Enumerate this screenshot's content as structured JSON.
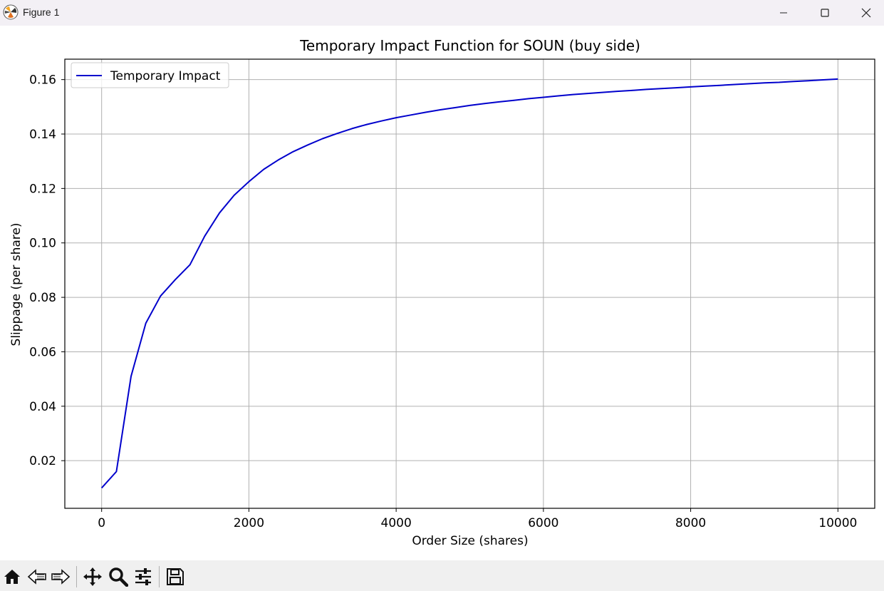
{
  "window": {
    "title": "Figure 1",
    "controls": [
      "minimize",
      "maximize",
      "close"
    ]
  },
  "toolbar": {
    "tools": [
      "home-icon",
      "back-icon",
      "forward-icon",
      "pan-icon",
      "zoom-icon",
      "configure-subplots-icon",
      "save-icon"
    ]
  },
  "chart_data": {
    "type": "line",
    "title": "Temporary Impact Function for SOUN (buy side)",
    "xlabel": "Order Size (shares)",
    "ylabel": "Slippage (per share)",
    "xlim": [
      -500,
      10500
    ],
    "ylim": [
      0.0025,
      0.1675
    ],
    "xticks": [
      0,
      2000,
      4000,
      6000,
      8000,
      10000
    ],
    "xtick_labels": [
      "0",
      "2000",
      "4000",
      "6000",
      "8000",
      "10000"
    ],
    "yticks": [
      0.02,
      0.04,
      0.06,
      0.08,
      0.1,
      0.12,
      0.14,
      0.16
    ],
    "ytick_labels": [
      "0.02",
      "0.04",
      "0.06",
      "0.08",
      "0.10",
      "0.12",
      "0.14",
      "0.16"
    ],
    "grid": true,
    "legend_position": "upper-left",
    "series": [
      {
        "name": "Temporary Impact",
        "color": "#0000cc",
        "x": [
          0,
          200,
          400,
          600,
          800,
          1000,
          1200,
          1400,
          1600,
          1800,
          2000,
          2200,
          2400,
          2600,
          2800,
          3000,
          3200,
          3400,
          3600,
          3800,
          4000,
          4200,
          4400,
          4600,
          4800,
          5000,
          5200,
          5400,
          5600,
          5800,
          6000,
          6200,
          6400,
          6600,
          6800,
          7000,
          7200,
          7400,
          7600,
          7800,
          8000,
          8200,
          8400,
          8600,
          8800,
          9000,
          9200,
          9400,
          9600,
          9800,
          10000
        ],
        "y": [
          0.01,
          0.016,
          0.051,
          0.0705,
          0.0805,
          0.0865,
          0.092,
          0.1025,
          0.111,
          0.1175,
          0.1225,
          0.127,
          0.1305,
          0.1335,
          0.136,
          0.1383,
          0.1402,
          0.142,
          0.1435,
          0.1448,
          0.146,
          0.147,
          0.148,
          0.1489,
          0.1497,
          0.1505,
          0.1512,
          0.1518,
          0.1524,
          0.153,
          0.1535,
          0.154,
          0.1545,
          0.1549,
          0.1553,
          0.1557,
          0.156,
          0.1564,
          0.1567,
          0.157,
          0.1573,
          0.1576,
          0.1579,
          0.1582,
          0.1585,
          0.1588,
          0.159,
          0.1593,
          0.1596,
          0.1599,
          0.1602
        ]
      }
    ]
  }
}
